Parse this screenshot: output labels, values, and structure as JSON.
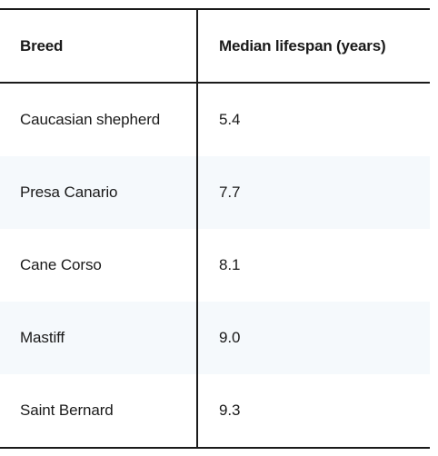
{
  "table": {
    "headers": [
      "Breed",
      "Median lifespan (years)"
    ],
    "rows": [
      [
        "Caucasian shepherd",
        "5.4"
      ],
      [
        "Presa Canario",
        "7.7"
      ],
      [
        "Cane Corso",
        "8.1"
      ],
      [
        "Mastiff",
        "9.0"
      ],
      [
        "Saint Bernard",
        "9.3"
      ]
    ],
    "stripe_color": "#f5f9fc",
    "border_color": "#1a1a1a"
  }
}
